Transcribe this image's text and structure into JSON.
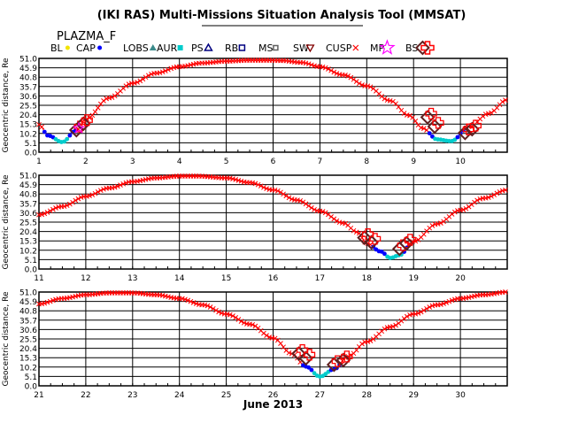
{
  "header": {
    "title": "(IKI RAS) Multi-Missions Situation Analysis Tool (MMSAT)",
    "subtitle": "PLAZMA_F"
  },
  "legend": {
    "placement": "top",
    "items": [
      {
        "label": "BL",
        "symbol": "dot",
        "color": "#f2e400"
      },
      {
        "label": "CAP",
        "symbol": "dot",
        "color": "#0000ff"
      },
      {
        "label": "LOBS",
        "symbol": "triangle-filled",
        "color": "#3a8a8a"
      },
      {
        "label": "AUR",
        "symbol": "square-filled",
        "color": "#00cccc"
      },
      {
        "label": "PS",
        "symbol": "triangle-open",
        "color": "#000080"
      },
      {
        "label": "RB",
        "symbol": "square-open",
        "color": "#000080"
      },
      {
        "label": "MS",
        "symbol": "square-small",
        "color": "#606060"
      },
      {
        "label": "SW",
        "symbol": "triangle-down",
        "color": "#800000"
      },
      {
        "label": "CUSP",
        "symbol": "cross-small",
        "color": "#ff0000"
      },
      {
        "label": "MP",
        "symbol": "star",
        "color": "#ff00ff"
      },
      {
        "label": "BS",
        "symbol": "diamond",
        "color": "#602020"
      },
      {
        "label": "",
        "symbol": "plus-open",
        "color": "#ff0000"
      }
    ]
  },
  "chart_data": [
    {
      "type": "line",
      "ylabel": "Geocentric distance, Re",
      "xlim": [
        1,
        11
      ],
      "ylim": [
        0,
        51
      ],
      "yticks": [
        "51.0",
        "45.9",
        "40.8",
        "35.7",
        "30.6",
        "25.5",
        "20.4",
        "15.3",
        "10.2",
        "5.1",
        "0.0"
      ],
      "xticks": [
        "1",
        "2",
        "3",
        "4",
        "5",
        "6",
        "7",
        "8",
        "9",
        "10"
      ],
      "series": [
        {
          "x": [
            1.0,
            1.2,
            1.5,
            1.8,
            2.0,
            2.5,
            3.0,
            3.5,
            4.0,
            4.5,
            5.0,
            5.5,
            5.85,
            6.2,
            6.6,
            7.0,
            7.5,
            8.0,
            8.5,
            8.9,
            9.2,
            9.5,
            9.8,
            10.2,
            10.6,
            11.0
          ],
          "y": [
            15.0,
            9.0,
            5.5,
            12.0,
            18.0,
            29.5,
            37.5,
            43.0,
            46.5,
            48.5,
            49.5,
            50.0,
            50.0,
            49.8,
            48.8,
            46.5,
            42.0,
            36.0,
            28.0,
            20.0,
            13.0,
            7.0,
            6.0,
            14.0,
            21.0,
            28.5
          ]
        }
      ],
      "boundary_crossings": [
        {
          "marker": "BS",
          "x": 1.8,
          "y": 12.0
        },
        {
          "marker": "BS",
          "x": 1.95,
          "y": 15.5
        },
        {
          "marker": "MP",
          "x": 1.85,
          "y": 13.0
        },
        {
          "marker": "BS",
          "x": 9.3,
          "y": 19.0
        },
        {
          "marker": "BS",
          "x": 9.45,
          "y": 14.0
        },
        {
          "marker": "BS",
          "x": 10.1,
          "y": 10.5
        },
        {
          "marker": "BS",
          "x": 10.25,
          "y": 12.5
        }
      ]
    },
    {
      "type": "line",
      "ylabel": "Geocentric distance, Re",
      "xlim": [
        11,
        21
      ],
      "ylim": [
        0,
        51
      ],
      "yticks": [
        "51.0",
        "45.9",
        "40.8",
        "35.7",
        "30.6",
        "25.5",
        "20.4",
        "15.3",
        "10.2",
        "5.1",
        "0.0"
      ],
      "xticks": [
        "11",
        "12",
        "13",
        "14",
        "15",
        "16",
        "17",
        "18",
        "19",
        "20"
      ],
      "series": [
        {
          "x": [
            11.0,
            11.5,
            12.0,
            12.5,
            13.0,
            13.5,
            14.0,
            14.4,
            15.0,
            15.5,
            16.0,
            16.5,
            17.0,
            17.5,
            17.8,
            18.0,
            18.3,
            18.5,
            18.7,
            19.0,
            19.5,
            20.0,
            20.5,
            21.0
          ],
          "y": [
            29.5,
            34.0,
            39.5,
            44.0,
            47.5,
            49.5,
            50.5,
            50.5,
            49.5,
            47.0,
            43.0,
            37.5,
            31.5,
            25.0,
            20.0,
            14.0,
            9.5,
            6.0,
            7.5,
            15.0,
            24.5,
            32.0,
            38.5,
            43.0
          ]
        }
      ],
      "boundary_crossings": [
        {
          "marker": "BS",
          "x": 17.95,
          "y": 17.0
        },
        {
          "marker": "BS",
          "x": 18.1,
          "y": 14.5
        },
        {
          "marker": "BS",
          "x": 18.7,
          "y": 11.0
        },
        {
          "marker": "BS",
          "x": 18.85,
          "y": 14.0
        }
      ]
    },
    {
      "type": "line",
      "ylabel": "Geocentric distance, Re",
      "xlabel": "June 2013",
      "xlim": [
        21,
        31
      ],
      "ylim": [
        0,
        51
      ],
      "yticks": [
        "51.0",
        "45.9",
        "40.8",
        "35.7",
        "30.6",
        "25.5",
        "20.4",
        "15.3",
        "10.2",
        "5.1",
        "0.0"
      ],
      "xticks": [
        "21",
        "22",
        "23",
        "24",
        "25",
        "26",
        "27",
        "28",
        "29",
        "30"
      ],
      "series": [
        {
          "x": [
            21.0,
            21.5,
            22.0,
            22.5,
            23.0,
            23.5,
            24.0,
            24.5,
            25.0,
            25.5,
            26.0,
            26.4,
            26.7,
            27.0,
            27.3,
            27.6,
            28.0,
            28.5,
            29.0,
            29.5,
            30.0,
            30.5,
            31.0
          ],
          "y": [
            44.5,
            47.5,
            49.5,
            50.5,
            50.5,
            49.5,
            47.5,
            44.0,
            39.0,
            33.5,
            26.0,
            17.5,
            10.5,
            5.0,
            9.0,
            16.0,
            24.0,
            32.0,
            39.0,
            44.0,
            47.5,
            49.5,
            51.0
          ]
        }
      ],
      "boundary_crossings": [
        {
          "marker": "BS",
          "x": 26.55,
          "y": 17.5
        },
        {
          "marker": "BS",
          "x": 26.7,
          "y": 15.0
        },
        {
          "marker": "BS",
          "x": 27.3,
          "y": 11.5
        },
        {
          "marker": "BS",
          "x": 27.5,
          "y": 14.0
        }
      ]
    }
  ]
}
